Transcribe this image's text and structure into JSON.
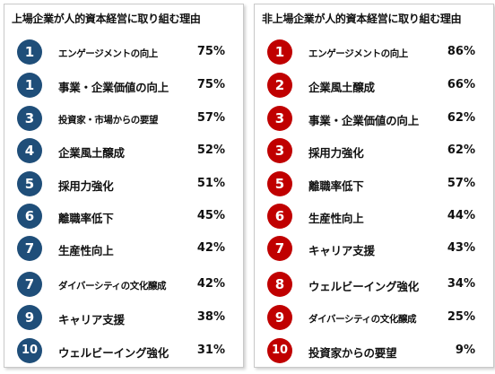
{
  "colors": {
    "listed": "#1f4e79",
    "unlisted": "#c00000"
  },
  "chart_data": [
    {
      "type": "table",
      "title": "上場企業が人的資本経営に取り組む理由",
      "ranks": [
        "1",
        "1",
        "3",
        "4",
        "5",
        "6",
        "7",
        "7",
        "9",
        "10"
      ],
      "categories": [
        "エンゲージメントの向上",
        "事業・企業価値の向上",
        "投資家・市場からの要望",
        "企業風土醸成",
        "採用力強化",
        "離職率低下",
        "生産性向上",
        "ダイバーシティの文化醸成",
        "キャリア支援",
        "ウェルビーイング強化"
      ],
      "values": [
        75,
        75,
        57,
        52,
        51,
        45,
        42,
        42,
        38,
        31
      ],
      "value_labels": [
        "75%",
        "75%",
        "57%",
        "52%",
        "51%",
        "45%",
        "42%",
        "42%",
        "38%",
        "31%"
      ],
      "accent": "#1f4e79"
    },
    {
      "type": "table",
      "title": "非上場企業が人的資本経営に取り組む理由",
      "ranks": [
        "1",
        "2",
        "3",
        "3",
        "5",
        "6",
        "7",
        "8",
        "9",
        "10"
      ],
      "categories": [
        "エンゲージメントの向上",
        "企業風土醸成",
        "事業・企業価値の向上",
        "採用力強化",
        "離職率低下",
        "生産性向上",
        "キャリア支援",
        "ウェルビーイング強化",
        "ダイバーシティの文化醸成",
        "投資家からの要望"
      ],
      "values": [
        86,
        66,
        62,
        62,
        57,
        44,
        43,
        34,
        25,
        9
      ],
      "value_labels": [
        "86%",
        "66%",
        "62%",
        "62%",
        "57%",
        "44%",
        "43%",
        "34%",
        "25%",
        "9%"
      ],
      "accent": "#c00000"
    }
  ]
}
